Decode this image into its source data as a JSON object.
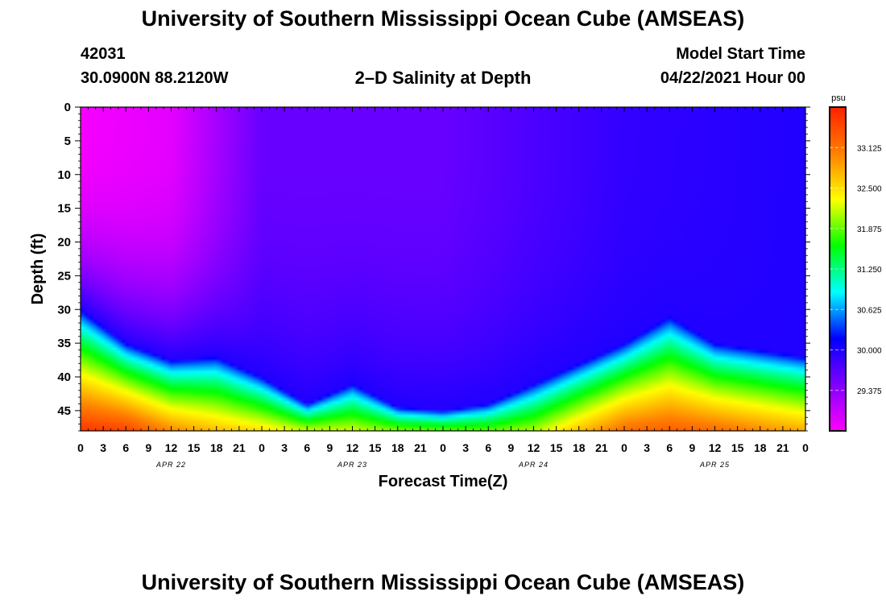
{
  "header": {
    "title": "University of Southern Mississippi Ocean Cube (AMSEAS)",
    "station_id": "42031",
    "station_coords": "30.0900N  88.2120W",
    "plot_title": "2–D Salinity at Depth",
    "model_start_label": "Model Start Time",
    "model_start_value": "04/22/2021 Hour 00"
  },
  "footer": {
    "title": "University of Southern Mississippi Ocean Cube (AMSEAS)"
  },
  "chart_data": {
    "type": "heatmap",
    "title": "2–D Salinity at Depth",
    "xlabel": "Forecast Time(Z)",
    "ylabel": "Depth (ft)",
    "x_unit": "hours from 04/22/2021 00Z",
    "xlim": [
      0,
      96
    ],
    "ylim": [
      0,
      48
    ],
    "y_inverted": true,
    "x_ticks": [
      "0",
      "3",
      "6",
      "9",
      "12",
      "15",
      "18",
      "21",
      "0",
      "3",
      "6",
      "9",
      "12",
      "15",
      "18",
      "21",
      "0",
      "3",
      "6",
      "9",
      "12",
      "15",
      "18",
      "21",
      "0",
      "3",
      "6",
      "9",
      "12",
      "15",
      "18",
      "21",
      "0"
    ],
    "y_ticks": [
      "0",
      "5",
      "10",
      "15",
      "20",
      "25",
      "30",
      "35",
      "40",
      "45"
    ],
    "date_labels": [
      "APR 22",
      "APR 23",
      "APR 24",
      "APR 25"
    ],
    "colorbar": {
      "unit": "psu",
      "range": [
        28.75,
        33.75
      ],
      "tick_labels": [
        "29.375",
        "30.000",
        "30.625",
        "31.250",
        "31.875",
        "32.500",
        "33.125"
      ],
      "colors": [
        "#ff00ff",
        "#8000ff",
        "#0000ff",
        "#00ffff",
        "#00ff00",
        "#ffff00",
        "#ff8000",
        "#ff2000"
      ]
    },
    "halocline_depth_ft": {
      "time_h": [
        0,
        6,
        12,
        18,
        24,
        30,
        36,
        42,
        48,
        54,
        60,
        66,
        72,
        78,
        84,
        90,
        96
      ],
      "depth": [
        30,
        35,
        37.5,
        37,
        40,
        44,
        41,
        44.5,
        45,
        44,
        41,
        38,
        35,
        31,
        35,
        36,
        37
      ]
    },
    "surface_salinity_psu": {
      "time_h": [
        0,
        12,
        24,
        48,
        72,
        96
      ],
      "value": [
        28.8,
        28.9,
        29.6,
        29.6,
        29.9,
        30.0
      ]
    },
    "bottom_salinity_psu": {
      "time_h": [
        0,
        6,
        12,
        18,
        24,
        30,
        36,
        42,
        48,
        54,
        60,
        66,
        72,
        78,
        84,
        90,
        96
      ],
      "value": [
        33.6,
        33.5,
        33.0,
        32.7,
        32.5,
        32.2,
        32.2,
        32.0,
        31.9,
        31.9,
        32.1,
        32.7,
        33.2,
        33.3,
        33.2,
        33.0,
        32.8
      ]
    }
  }
}
